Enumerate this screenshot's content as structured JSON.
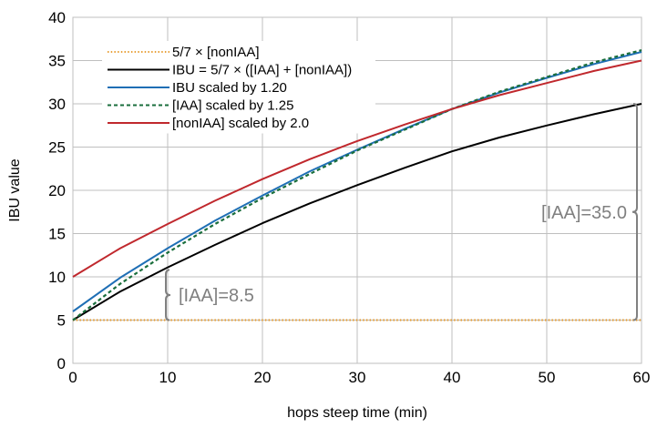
{
  "chart_data": {
    "type": "line",
    "xlabel": "hops steep time (min)",
    "ylabel": "IBU value",
    "xlim": [
      0,
      60
    ],
    "ylim": [
      0,
      40
    ],
    "xticks": [
      0,
      10,
      20,
      30,
      40,
      50,
      60
    ],
    "yticks": [
      0,
      5,
      10,
      15,
      20,
      25,
      30,
      35,
      40
    ],
    "grid": true,
    "legend_position": "top-left",
    "x": [
      0,
      5,
      10,
      15,
      20,
      25,
      30,
      35,
      40,
      45,
      50,
      55,
      60
    ],
    "series": [
      {
        "name": "5/7 × [nonIAA]",
        "color": "#e8a13a",
        "style": "dotted",
        "values": [
          5,
          5,
          5,
          5,
          5,
          5,
          5,
          5,
          5,
          5,
          5,
          5,
          5
        ]
      },
      {
        "name": "IBU = 5/7 × ([IAA] + [nonIAA])",
        "color": "#000000",
        "style": "solid",
        "values": [
          5.0,
          8.3,
          11.1,
          13.7,
          16.2,
          18.5,
          20.6,
          22.6,
          24.5,
          26.1,
          27.5,
          28.8,
          30.0
        ]
      },
      {
        "name": "IBU scaled by 1.20",
        "color": "#1f6fb5",
        "style": "solid",
        "values": [
          6.0,
          9.9,
          13.3,
          16.5,
          19.4,
          22.2,
          24.7,
          27.1,
          29.4,
          31.3,
          33.0,
          34.6,
          36.0
        ]
      },
      {
        "name": "[IAA] scaled by 1.25",
        "color": "#1a6e3c",
        "style": "dashed",
        "values": [
          5.0,
          9.2,
          12.8,
          16.1,
          19.1,
          21.9,
          24.6,
          27.0,
          29.4,
          31.4,
          33.1,
          34.8,
          36.2
        ]
      },
      {
        "name": "[nonIAA] scaled by 2.0",
        "color": "#c0282d",
        "style": "solid",
        "values": [
          10.0,
          13.3,
          16.1,
          18.8,
          21.3,
          23.6,
          25.7,
          27.6,
          29.4,
          31.0,
          32.4,
          33.8,
          35.0
        ]
      }
    ],
    "annotations": [
      {
        "text": "[IAA]=8.5",
        "x": 10,
        "y_from": 5,
        "y_to": 10.8
      },
      {
        "text": "[IAA]=35.0",
        "x": 60,
        "y_from": 5,
        "y_to": 30
      }
    ]
  }
}
